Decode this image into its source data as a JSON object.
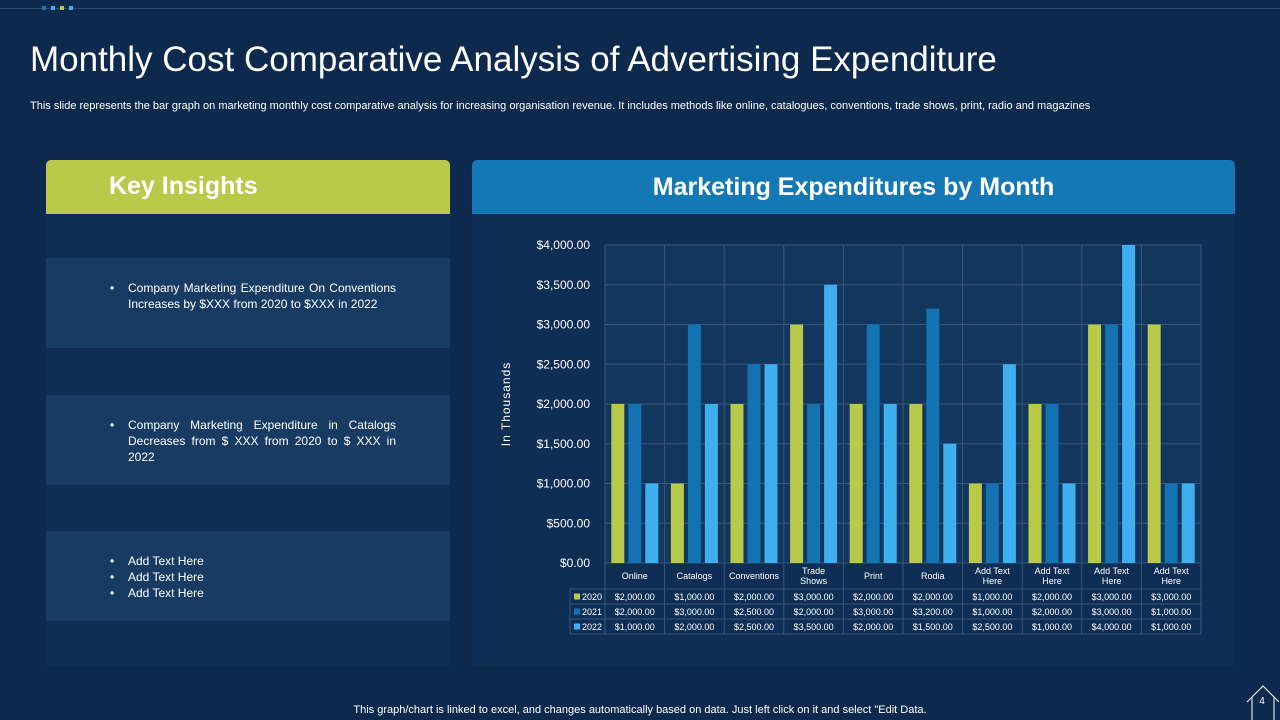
{
  "title": "Monthly Cost Comparative Analysis of Advertising Expenditure",
  "subtitle": "This slide represents the bar graph on marketing monthly cost comparative analysis for increasing organisation revenue. It includes methods like online, catalogues, conventions, trade shows, print, radio and magazines",
  "insights_heading": "Key Insights",
  "insights": [
    [
      "Company Marketing Expenditure On Conventions Increases by $XXX  from 2020 to $XXX  in 2022"
    ],
    [
      "Company Marketing Expenditure in Catalogs Decreases from $ XXX  from 2020 to $ XXX  in 2022"
    ],
    [
      "Add Text Here",
      "Add Text Here",
      "Add Text Here"
    ]
  ],
  "chart_heading": "Marketing Expenditures by Month",
  "footer": "This graph/chart is linked to excel,  and changes automatically based on data. Just left click on it and select \"Edit Data.",
  "page_number": "4",
  "colors": {
    "accent_green": "#b9c94a",
    "accent_blue": "#1478b4",
    "background": "#0d2a4e"
  },
  "chart_data": {
    "type": "bar",
    "ylabel": "In Thousands",
    "ylim": [
      0,
      4000
    ],
    "y_ticks": [
      "$0.00",
      "$500.00",
      "$1,000.00",
      "$1,500.00",
      "$2,000.00",
      "$2,500.00",
      "$3,000.00",
      "$3,500.00",
      "$4,000.00"
    ],
    "categories": [
      [
        "Online"
      ],
      [
        "Catalogs"
      ],
      [
        "Conventions"
      ],
      [
        "Trade",
        "Shows"
      ],
      [
        "Print"
      ],
      [
        "Rodia"
      ],
      [
        "Add Text",
        "Here"
      ],
      [
        "Add Text",
        "Here"
      ],
      [
        "Add Text",
        "Here"
      ],
      [
        "Add Text",
        "Here"
      ]
    ],
    "series": [
      {
        "name": "2020",
        "color": "#b9c94a",
        "values": [
          2000,
          1000,
          2000,
          3000,
          2000,
          2000,
          1000,
          2000,
          3000,
          3000
        ],
        "labels": [
          "$2,000.00",
          "$1,000.00",
          "$2,000.00",
          "$3,000.00",
          "$2,000.00",
          "$2,000.00",
          "$1,000.00",
          "$2,000.00",
          "$3,000.00",
          "$3,000.00"
        ]
      },
      {
        "name": "2021",
        "color": "#1373b2",
        "values": [
          2000,
          3000,
          2500,
          2000,
          3000,
          3200,
          1000,
          2000,
          3000,
          1000
        ],
        "labels": [
          "$2,000.00",
          "$3,000.00",
          "$2,500.00",
          "$2,000.00",
          "$3,000.00",
          "$3,200.00",
          "$1,000.00",
          "$2,000.00",
          "$3,000.00",
          "$1,000.00"
        ]
      },
      {
        "name": "2022",
        "color": "#3fb0ef",
        "values": [
          1000,
          2000,
          2500,
          3500,
          2000,
          1500,
          2500,
          1000,
          4000,
          1000
        ],
        "labels": [
          "$1,000.00",
          "$2,000.00",
          "$2,500.00",
          "$3,500.00",
          "$2,000.00",
          "$1,500.00",
          "$2,500.00",
          "$1,000.00",
          "$4,000.00",
          "$1,000.00"
        ]
      }
    ],
    "grid": true,
    "legend": "data-table"
  }
}
